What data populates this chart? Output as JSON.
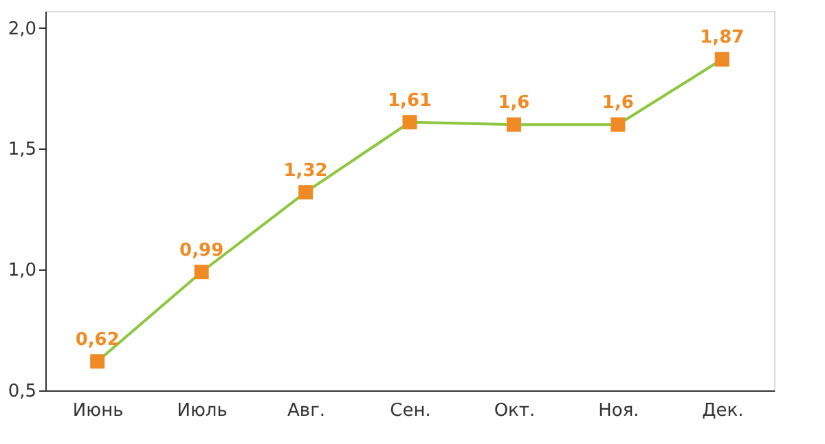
{
  "chart_data": {
    "type": "line",
    "categories": [
      "Июнь",
      "Июль",
      "Авг.",
      "Сен.",
      "Окт.",
      "Ноя.",
      "Дек."
    ],
    "series": [
      {
        "color": "#8dc63f",
        "colors": [
          "#f08a24",
          "#f08a24",
          "#f08a24",
          "#f08a24",
          "#f08a24",
          "#f08a24",
          "#f08a24"
        ],
        "values": [
          0.62,
          0.99,
          1.32,
          1.61,
          1.6,
          1.6,
          1.87
        ],
        "value_labels": [
          "0,62",
          "0,99",
          "1,32",
          "1,61",
          "1,6",
          "1,6",
          "1,87"
        ]
      }
    ],
    "ylim": [
      0.5,
      2.07
    ],
    "yticks": [
      {
        "value": 0.5,
        "label": "0,5"
      },
      {
        "value": 1.0,
        "label": "1,0"
      },
      {
        "value": 1.5,
        "label": "1,5"
      },
      {
        "value": 2.0,
        "label": "2,0"
      }
    ],
    "marker": "square",
    "line_style": "solid",
    "grid": false
  }
}
